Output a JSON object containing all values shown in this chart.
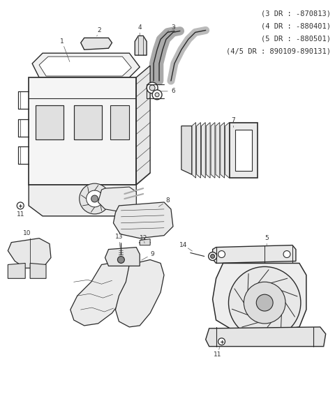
{
  "background_color": "#ffffff",
  "line_color": "#2a2a2a",
  "text_color": "#333333",
  "header_lines": [
    "(3 DR : -870813)",
    "(4 DR : -880401)",
    "(5 DR : -880501)",
    "(4/5 DR : 890109-890131)"
  ],
  "figsize": [
    4.8,
    5.65
  ],
  "dpi": 100
}
